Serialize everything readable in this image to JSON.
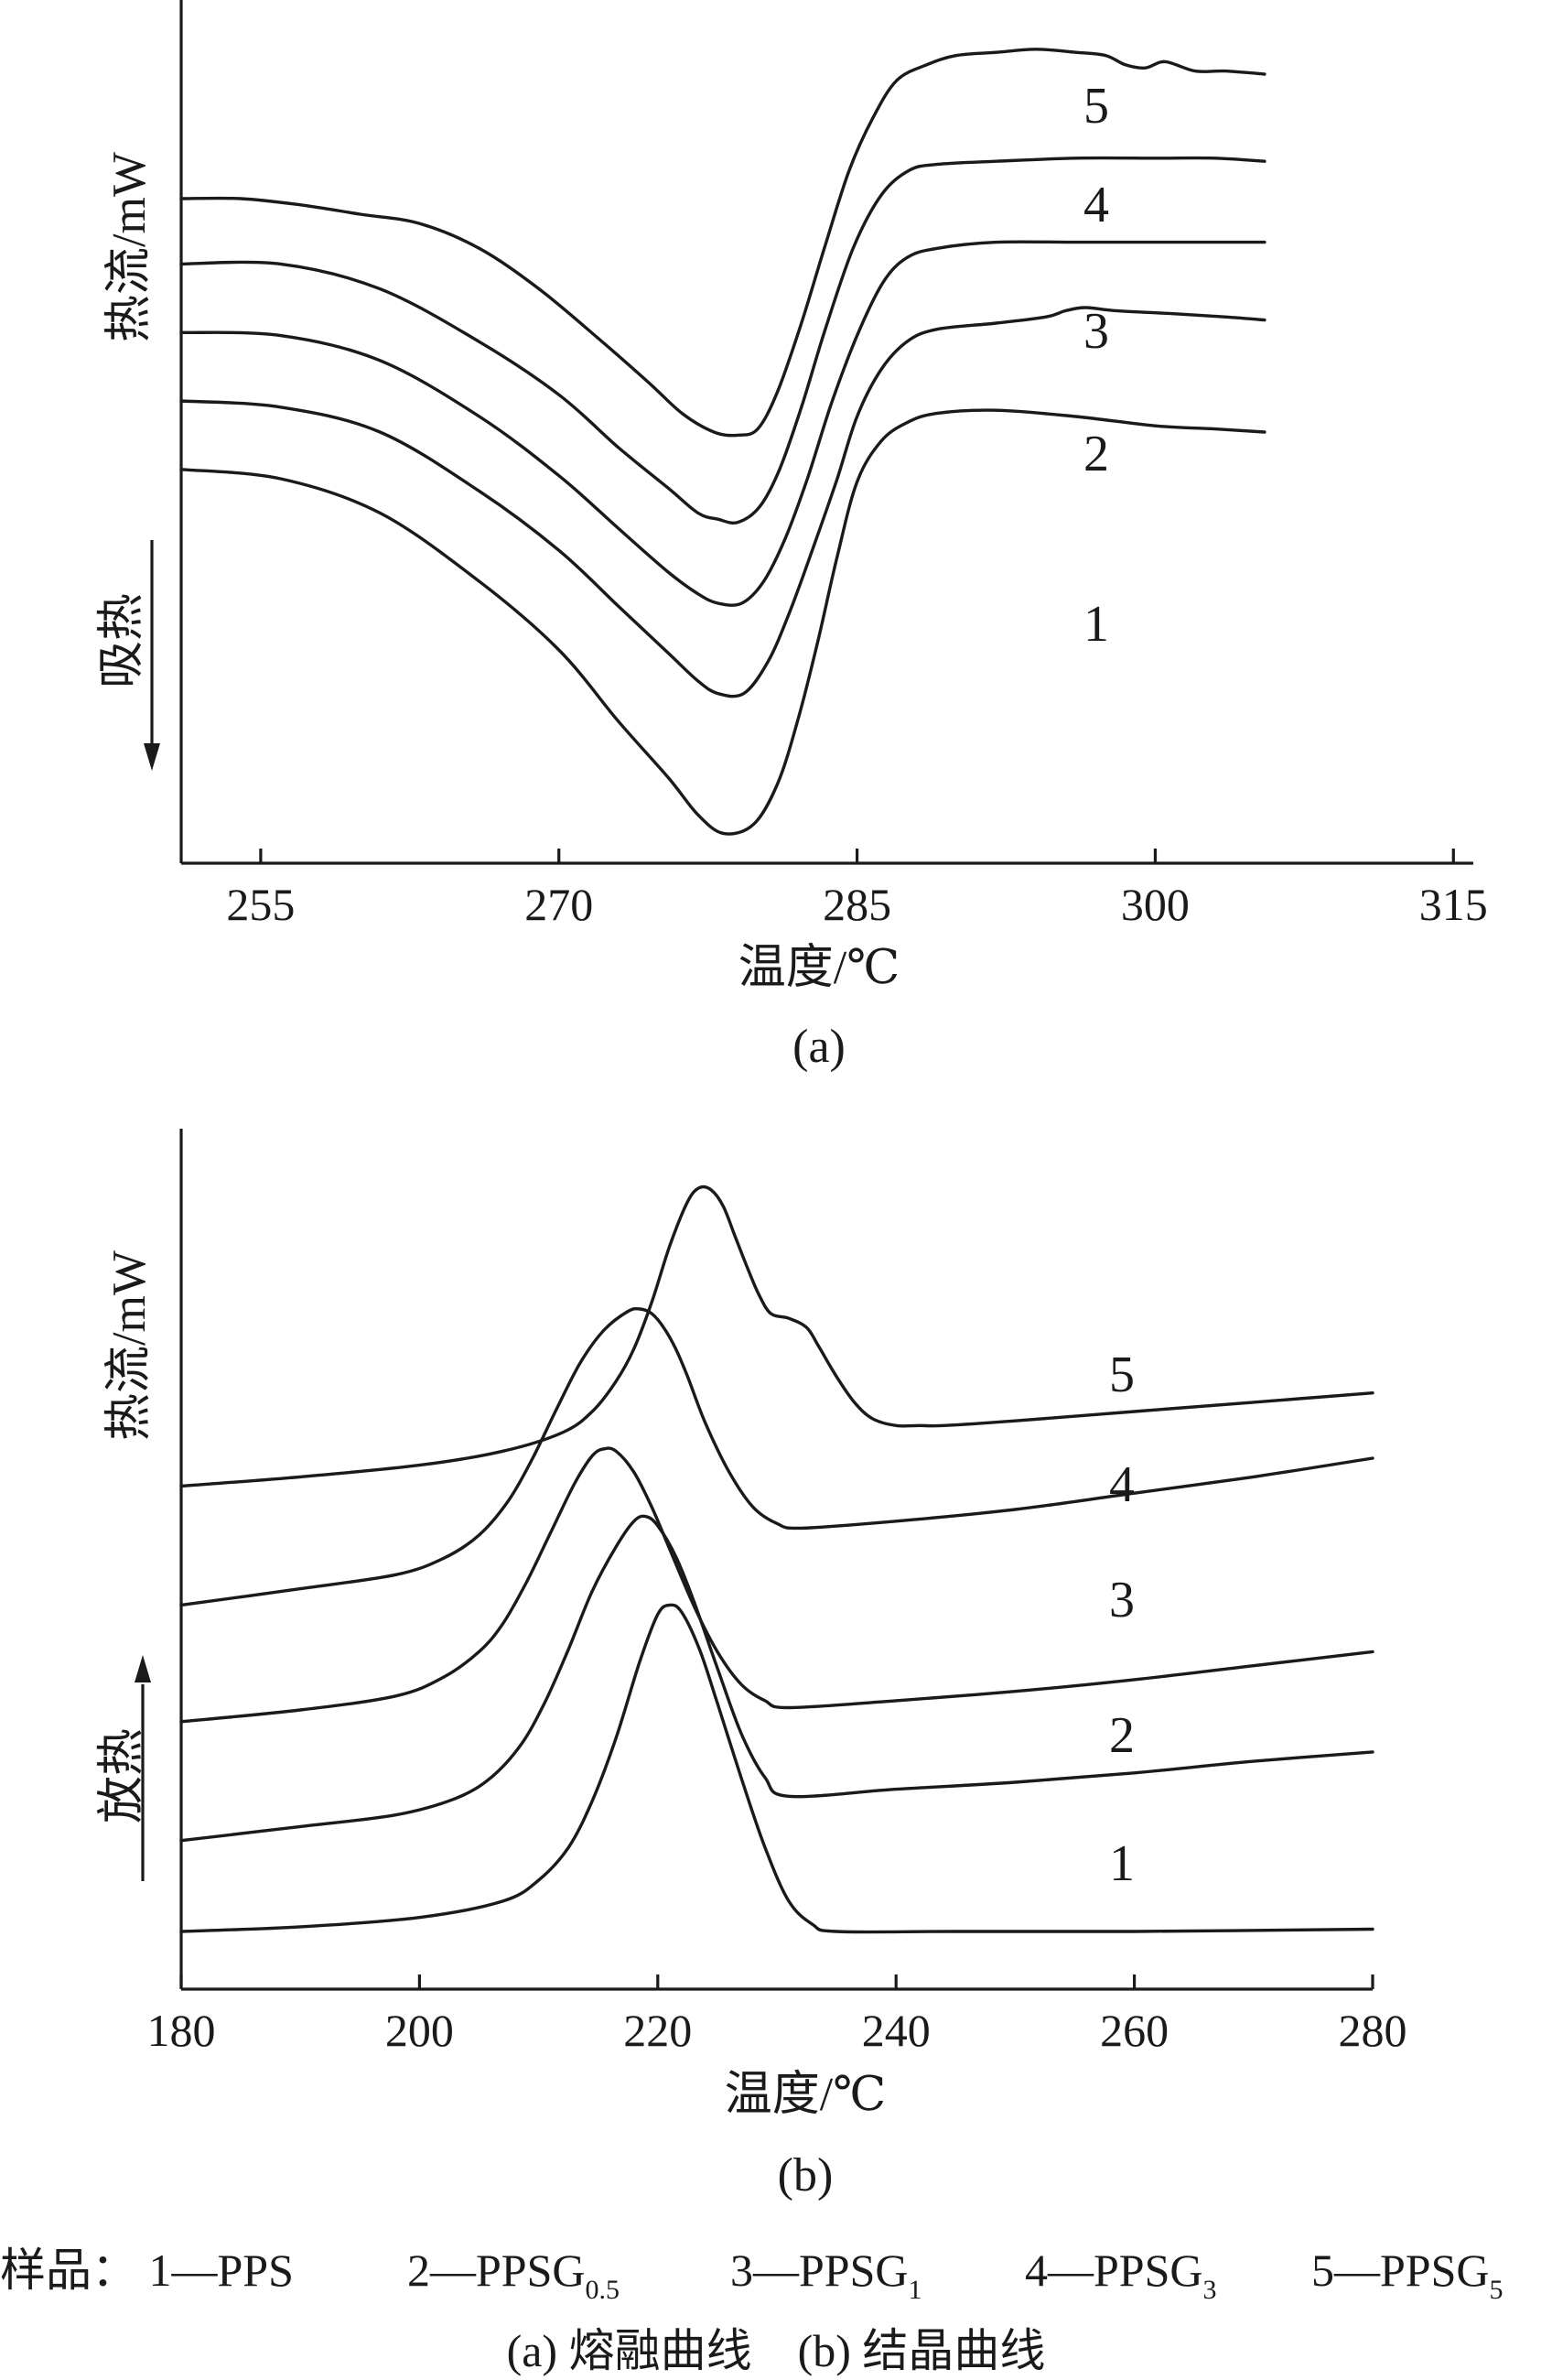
{
  "chart_data": [
    {
      "type": "line",
      "sublabel": "(a)",
      "xlabel": "温度/℃",
      "ylabel": "热流/mW",
      "direction_label": "吸热",
      "direction": "down",
      "xlim": [
        251,
        316
      ],
      "xticks": [
        255,
        270,
        285,
        300,
        315
      ],
      "curve_labels": [
        "1",
        "2",
        "3",
        "4",
        "5"
      ],
      "series": [
        {
          "label": "1",
          "x": [
            251.0,
            256.0,
            261.0,
            266.0,
            270.0,
            273.0,
            275.5,
            277.0,
            278.3,
            279.8,
            281.0,
            282.0,
            283.0,
            284.0,
            285.0,
            286.2,
            287.5,
            289.0,
            292.0,
            296.0,
            300.0,
            303.0,
            305.5
          ],
          "y": [
            -2.2,
            -2.5,
            -3.6,
            -5.8,
            -8.0,
            -10.3,
            -12.1,
            -13.3,
            -13.9,
            -13.6,
            -12.3,
            -10.3,
            -7.8,
            -5.0,
            -2.6,
            -1.3,
            -0.7,
            -0.4,
            -0.3,
            -0.5,
            -0.8,
            -0.9,
            -1.0
          ]
        },
        {
          "label": "2",
          "x": [
            251.0,
            256.0,
            261.0,
            266.0,
            270.0,
            273.0,
            275.5,
            277.0,
            278.0,
            279.3,
            280.5,
            281.6,
            282.8,
            284.0,
            285.0,
            286.2,
            287.5,
            289.0,
            292.0,
            294.5,
            295.5,
            296.5,
            298.0,
            301.0,
            303.5,
            305.5
          ],
          "y": [
            0.0,
            -0.2,
            -1.0,
            -2.9,
            -4.8,
            -6.6,
            -8.1,
            -9.0,
            -9.4,
            -9.4,
            -8.4,
            -6.8,
            -4.7,
            -2.5,
            -0.5,
            1.0,
            1.9,
            2.3,
            2.5,
            2.7,
            2.9,
            3.0,
            2.9,
            2.8,
            2.7,
            2.6
          ]
        },
        {
          "label": "3",
          "x": [
            251.0,
            256.0,
            261.0,
            266.0,
            270.0,
            273.0,
            275.5,
            277.0,
            278.0,
            279.2,
            280.3,
            281.4,
            282.5,
            283.7,
            285.0,
            286.3,
            287.5,
            289.0,
            292.0,
            296.0,
            300.0,
            303.0,
            305.5
          ],
          "y": [
            2.2,
            2.1,
            1.3,
            -0.5,
            -2.4,
            -4.1,
            -5.5,
            -6.2,
            -6.5,
            -6.5,
            -5.8,
            -4.4,
            -2.5,
            -0.1,
            2.1,
            3.8,
            4.6,
            4.9,
            5.1,
            5.1,
            5.1,
            5.1,
            5.1
          ]
        },
        {
          "label": "4",
          "x": [
            251.0,
            256.0,
            261.0,
            266.0,
            270.0,
            273.0,
            275.5,
            277.0,
            278.0,
            279.0,
            280.1,
            281.1,
            282.2,
            283.4,
            284.8,
            286.2,
            287.6,
            289.0,
            292.0,
            296.0,
            300.0,
            303.0,
            305.5
          ],
          "y": [
            4.4,
            4.4,
            3.6,
            1.9,
            0.2,
            -1.5,
            -2.8,
            -3.6,
            -3.8,
            -3.9,
            -3.4,
            -2.2,
            -0.2,
            2.3,
            4.9,
            6.6,
            7.4,
            7.6,
            7.7,
            7.8,
            7.8,
            7.8,
            7.7
          ]
        },
        {
          "label": "5",
          "x": [
            251.0,
            254.0,
            257.0,
            260.0,
            263.0,
            266.0,
            269.0,
            272.0,
            274.5,
            276.2,
            277.8,
            279.0,
            280.0,
            281.0,
            282.2,
            283.4,
            284.6,
            285.8,
            287.0,
            288.5,
            290.0,
            292.0,
            294.0,
            296.0,
            297.5,
            298.5,
            299.5,
            300.5,
            302.0,
            303.5,
            305.5
          ],
          "y": [
            6.5,
            6.5,
            6.3,
            6.0,
            5.7,
            4.9,
            3.6,
            2.0,
            0.6,
            -0.4,
            -1.0,
            -1.1,
            -0.9,
            0.3,
            2.5,
            5.0,
            7.4,
            9.1,
            10.3,
            10.8,
            11.1,
            11.2,
            11.3,
            11.2,
            11.1,
            10.8,
            10.7,
            10.9,
            10.6,
            10.6,
            10.5
          ]
        }
      ]
    },
    {
      "type": "line",
      "sublabel": "(b)",
      "xlabel": "温度/℃",
      "ylabel": "热流/mW",
      "direction_label": "放热",
      "direction": "up",
      "xlim": [
        180,
        280
      ],
      "xticks": [
        180,
        200,
        220,
        240,
        260,
        280
      ],
      "curve_labels": [
        "1",
        "2",
        "3",
        "4",
        "5"
      ],
      "series": [
        {
          "label": "1",
          "x": [
            180.0,
            190.0,
            200.0,
            207.0,
            210.0,
            212.5,
            214.5,
            216.5,
            218.5,
            220.0,
            221.0,
            222.0,
            223.5,
            225.0,
            227.0,
            229.0,
            231.0,
            233.0,
            235.0,
            245.0,
            260.0,
            280.0
          ],
          "y": [
            0.0,
            0.2,
            0.6,
            1.3,
            2.2,
            3.6,
            5.6,
            8.3,
            11.6,
            13.6,
            14.0,
            13.7,
            12.1,
            9.8,
            6.6,
            3.6,
            1.3,
            0.3,
            0.0,
            0.0,
            0.0,
            0.1
          ]
        },
        {
          "label": "2",
          "x": [
            180.0,
            190.0,
            198.0,
            203.0,
            206.0,
            208.5,
            210.5,
            212.5,
            214.5,
            216.5,
            218.0,
            219.0,
            220.0,
            221.5,
            223.0,
            225.0,
            227.0,
            229.0,
            231.0,
            240.0,
            250.0,
            260.0,
            270.0,
            280.0
          ],
          "y": [
            3.9,
            4.5,
            5.0,
            5.7,
            6.6,
            8.0,
            9.8,
            12.1,
            14.6,
            16.5,
            17.6,
            17.8,
            17.4,
            16.1,
            14.2,
            11.3,
            8.5,
            6.6,
            5.8,
            6.1,
            6.4,
            6.8,
            7.3,
            7.7
          ]
        },
        {
          "label": "3",
          "x": [
            180.0,
            190.0,
            198.0,
            202.0,
            205.0,
            207.0,
            209.0,
            211.0,
            213.0,
            214.5,
            215.5,
            216.5,
            218.0,
            219.5,
            221.0,
            223.0,
            225.0,
            227.0,
            229.0,
            231.0,
            240.0,
            250.0,
            260.0,
            270.0,
            280.0
          ],
          "y": [
            9.0,
            9.5,
            10.1,
            10.9,
            12.0,
            13.2,
            15.0,
            17.1,
            19.2,
            20.4,
            20.7,
            20.6,
            19.7,
            18.2,
            16.4,
            14.0,
            12.0,
            10.6,
            9.9,
            9.6,
            9.9,
            10.3,
            10.8,
            11.4,
            12.0
          ]
        },
        {
          "label": "4",
          "x": [
            180.0,
            190.0,
            198.0,
            202.0,
            205.0,
            207.5,
            209.5,
            211.5,
            213.5,
            215.5,
            217.5,
            218.5,
            219.5,
            220.5,
            221.5,
            222.5,
            224.0,
            226.0,
            228.0,
            230.0,
            232.0,
            240.0,
            250.0,
            260.0,
            270.0,
            280.0
          ],
          "y": [
            14.0,
            14.7,
            15.3,
            16.0,
            17.0,
            18.5,
            20.3,
            22.4,
            24.4,
            25.8,
            26.6,
            26.7,
            26.5,
            25.9,
            25.0,
            23.8,
            21.8,
            19.7,
            18.2,
            17.5,
            17.3,
            17.6,
            18.1,
            18.8,
            19.5,
            20.3
          ]
        },
        {
          "label": "5",
          "x": [
            180.0,
            190.0,
            200.0,
            207.0,
            212.0,
            214.5,
            216.5,
            218.0,
            219.5,
            221.0,
            222.5,
            223.5,
            224.5,
            225.5,
            226.5,
            227.5,
            228.5,
            229.5,
            231.0,
            232.5,
            233.5,
            235.0,
            236.5,
            238.0,
            240.0,
            242.0,
            244.0,
            250.0,
            260.0,
            270.0,
            280.0
          ],
          "y": [
            19.1,
            19.5,
            20.0,
            20.6,
            21.4,
            22.3,
            23.6,
            25.0,
            27.0,
            29.4,
            31.3,
            31.9,
            31.8,
            31.1,
            29.8,
            28.5,
            27.3,
            26.5,
            26.3,
            25.9,
            25.1,
            23.8,
            22.7,
            22.0,
            21.7,
            21.7,
            21.7,
            21.9,
            22.3,
            22.7,
            23.1
          ]
        }
      ]
    }
  ],
  "caption": {
    "samples_prefix": "样品：",
    "samples": [
      {
        "text": "1—PPS",
        "sub": ""
      },
      {
        "text": "2—PPSG",
        "sub": "0.5"
      },
      {
        "text": "3—PPSG",
        "sub": "1"
      },
      {
        "text": "4—PPSG",
        "sub": "3"
      },
      {
        "text": "5—PPSG",
        "sub": "5"
      }
    ],
    "line2": "(a) 熔融曲线　(b) 结晶曲线"
  }
}
